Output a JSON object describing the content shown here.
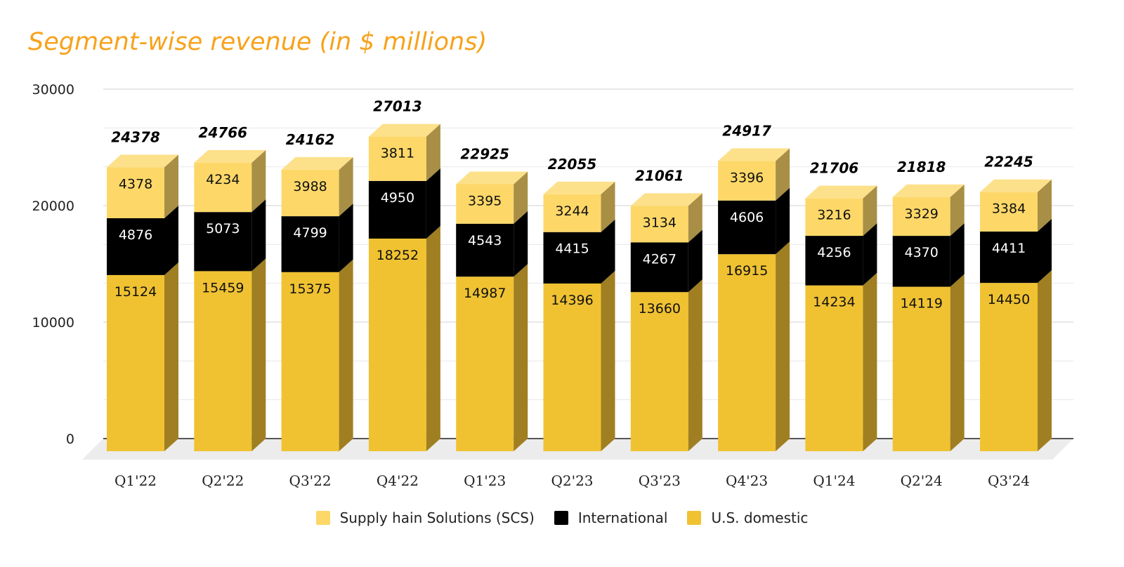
{
  "chart_data": {
    "type": "bar",
    "stacked": true,
    "style": "3d",
    "title": "Segment-wise revenue (in $ millions)",
    "xlabel": "",
    "ylabel": "",
    "ylim": [
      0,
      30000
    ],
    "yticks": [
      0,
      10000,
      20000,
      30000
    ],
    "grid": true,
    "legend_position": "bottom",
    "categories": [
      "Q1'22",
      "Q2'22",
      "Q3'22",
      "Q4'22",
      "Q1'23",
      "Q2'23",
      "Q3'23",
      "Q4'23",
      "Q1'24",
      "Q2'24",
      "Q3'24"
    ],
    "series": [
      {
        "name": "U.S. domestic",
        "color": "#F0C232",
        "values": [
          15124,
          15459,
          15375,
          18252,
          14987,
          14396,
          13660,
          16915,
          14234,
          14119,
          14450
        ]
      },
      {
        "name": "International",
        "color": "#000000",
        "values": [
          4876,
          5073,
          4799,
          4950,
          4543,
          4415,
          4267,
          4606,
          4256,
          4370,
          4411
        ]
      },
      {
        "name": "Supply hain Solutions (SCS)",
        "color": "#FDD868",
        "values": [
          4378,
          4234,
          3988,
          3811,
          3395,
          3244,
          3134,
          3396,
          3216,
          3329,
          3384
        ]
      }
    ],
    "totals": [
      24378,
      24766,
      24162,
      27013,
      22925,
      22055,
      21061,
      24917,
      21706,
      21818,
      22245
    ],
    "legend_order": [
      2,
      1,
      0
    ]
  }
}
